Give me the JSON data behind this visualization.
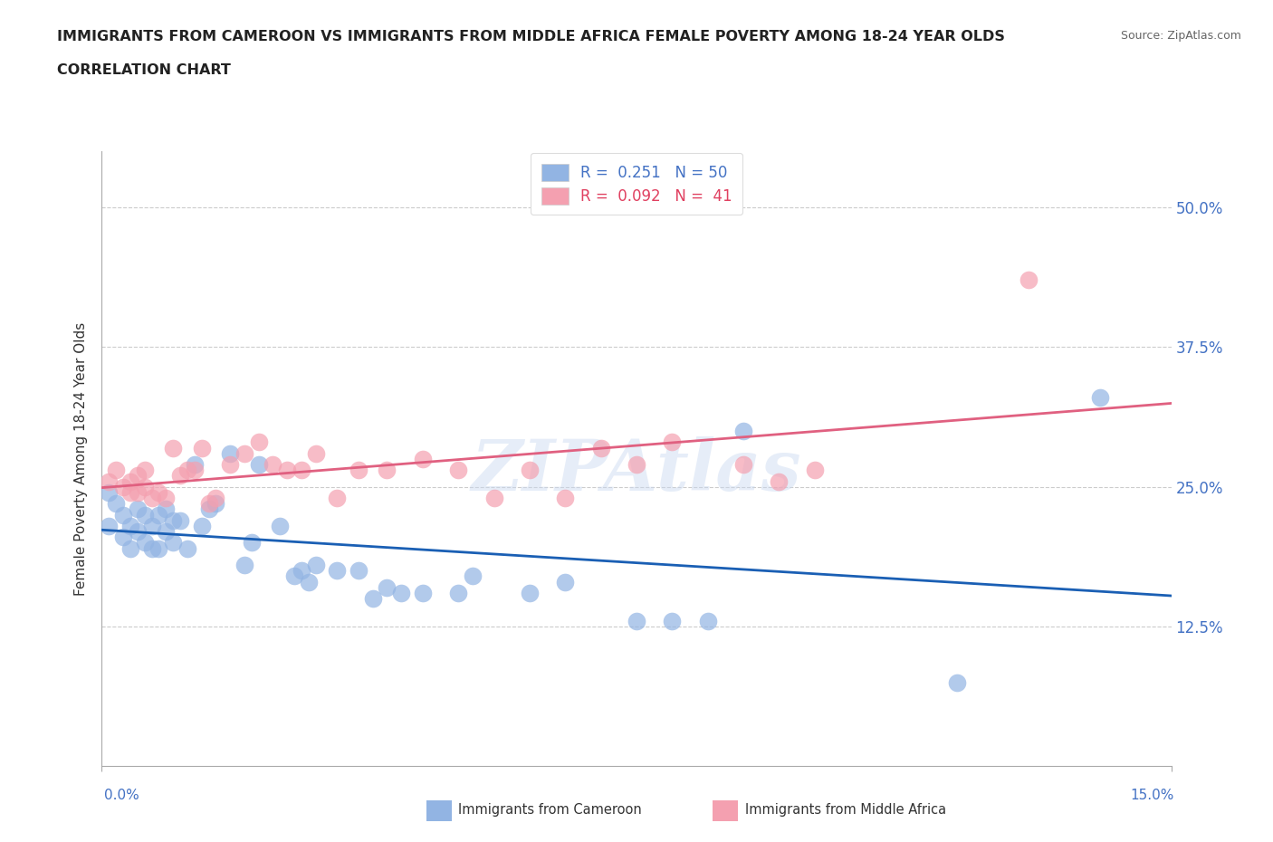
{
  "title_line1": "IMMIGRANTS FROM CAMEROON VS IMMIGRANTS FROM MIDDLE AFRICA FEMALE POVERTY AMONG 18-24 YEAR OLDS",
  "title_line2": "CORRELATION CHART",
  "source": "Source: ZipAtlas.com",
  "ylabel": "Female Poverty Among 18-24 Year Olds",
  "xlim": [
    0.0,
    0.15
  ],
  "ylim": [
    0.0,
    0.55
  ],
  "ytick_values": [
    0.125,
    0.25,
    0.375,
    0.5
  ],
  "watermark": "ZIPAtlas",
  "legend_r1": "R =  0.251   N = 50",
  "legend_r2": "R =  0.092   N =  41",
  "color_cameroon": "#92b4e3",
  "color_middle_africa": "#f4a0b0",
  "line_color_cameroon": "#1a5fb4",
  "line_color_middle_africa": "#e06080",
  "cameroon_x": [
    0.001,
    0.001,
    0.002,
    0.003,
    0.003,
    0.004,
    0.004,
    0.005,
    0.005,
    0.006,
    0.006,
    0.007,
    0.007,
    0.008,
    0.008,
    0.009,
    0.009,
    0.01,
    0.01,
    0.011,
    0.012,
    0.013,
    0.014,
    0.015,
    0.016,
    0.018,
    0.02,
    0.021,
    0.022,
    0.025,
    0.027,
    0.028,
    0.029,
    0.03,
    0.033,
    0.036,
    0.038,
    0.04,
    0.042,
    0.045,
    0.05,
    0.052,
    0.06,
    0.065,
    0.075,
    0.08,
    0.085,
    0.09,
    0.12,
    0.14
  ],
  "cameroon_y": [
    0.245,
    0.215,
    0.235,
    0.225,
    0.205,
    0.195,
    0.215,
    0.23,
    0.21,
    0.225,
    0.2,
    0.195,
    0.215,
    0.195,
    0.225,
    0.23,
    0.21,
    0.2,
    0.22,
    0.22,
    0.195,
    0.27,
    0.215,
    0.23,
    0.235,
    0.28,
    0.18,
    0.2,
    0.27,
    0.215,
    0.17,
    0.175,
    0.165,
    0.18,
    0.175,
    0.175,
    0.15,
    0.16,
    0.155,
    0.155,
    0.155,
    0.17,
    0.155,
    0.165,
    0.13,
    0.13,
    0.13,
    0.3,
    0.075,
    0.33
  ],
  "middle_africa_x": [
    0.001,
    0.002,
    0.003,
    0.004,
    0.004,
    0.005,
    0.005,
    0.006,
    0.006,
    0.007,
    0.008,
    0.009,
    0.01,
    0.011,
    0.012,
    0.013,
    0.014,
    0.015,
    0.016,
    0.018,
    0.02,
    0.022,
    0.024,
    0.026,
    0.028,
    0.03,
    0.033,
    0.036,
    0.04,
    0.045,
    0.05,
    0.055,
    0.06,
    0.065,
    0.07,
    0.075,
    0.08,
    0.09,
    0.095,
    0.1,
    0.13
  ],
  "middle_africa_y": [
    0.255,
    0.265,
    0.25,
    0.255,
    0.245,
    0.26,
    0.245,
    0.265,
    0.25,
    0.24,
    0.245,
    0.24,
    0.285,
    0.26,
    0.265,
    0.265,
    0.285,
    0.235,
    0.24,
    0.27,
    0.28,
    0.29,
    0.27,
    0.265,
    0.265,
    0.28,
    0.24,
    0.265,
    0.265,
    0.275,
    0.265,
    0.24,
    0.265,
    0.24,
    0.285,
    0.27,
    0.29,
    0.27,
    0.255,
    0.265,
    0.435
  ]
}
